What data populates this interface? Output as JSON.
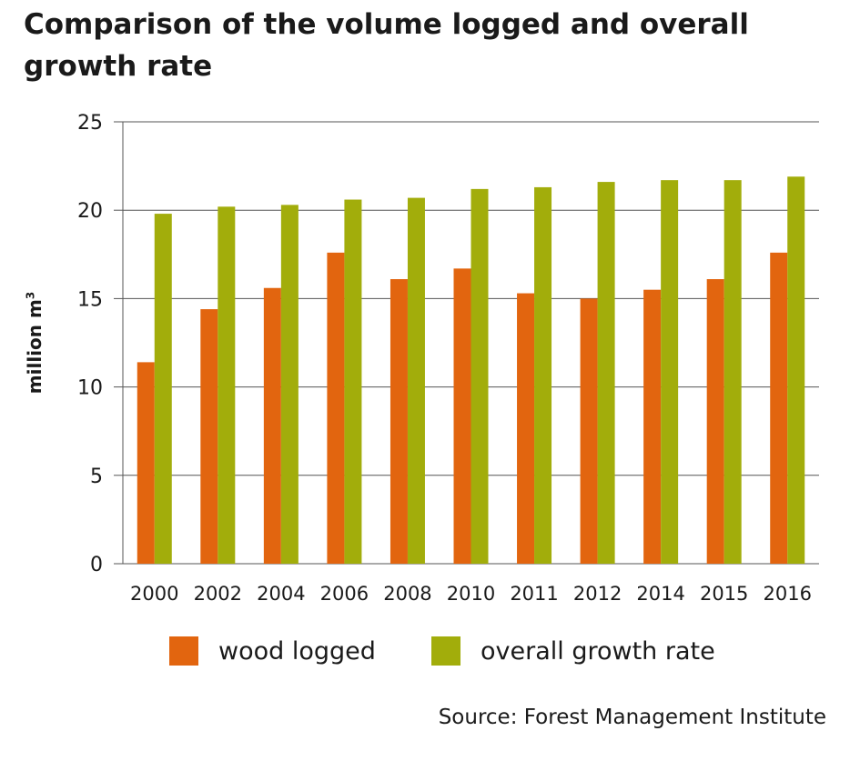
{
  "chart_data": {
    "type": "bar",
    "title": "Comparison of the volume logged and overall growth rate",
    "ylabel": "million m",
    "ylabel_superscript": "3",
    "xlabel": "",
    "ylim": [
      0,
      25
    ],
    "yticks": [
      0,
      5,
      10,
      15,
      20,
      25
    ],
    "grid": true,
    "legend_position": "bottom",
    "categories": [
      "2000",
      "2002",
      "2004",
      "2006",
      "2008",
      "2010",
      "2011",
      "2012",
      "2014",
      "2015",
      "2016"
    ],
    "series": [
      {
        "name": "wood logged",
        "color": "#e2650f",
        "values": [
          11.4,
          14.4,
          15.6,
          17.6,
          16.1,
          16.7,
          15.3,
          15.0,
          15.5,
          16.1,
          17.6
        ]
      },
      {
        "name": "overall growth rate",
        "color": "#a2ad0b",
        "values": [
          19.8,
          20.2,
          20.3,
          20.6,
          20.7,
          21.2,
          21.3,
          21.6,
          21.7,
          21.7,
          21.9
        ]
      }
    ],
    "source": "Source: Forest Management Institute"
  }
}
